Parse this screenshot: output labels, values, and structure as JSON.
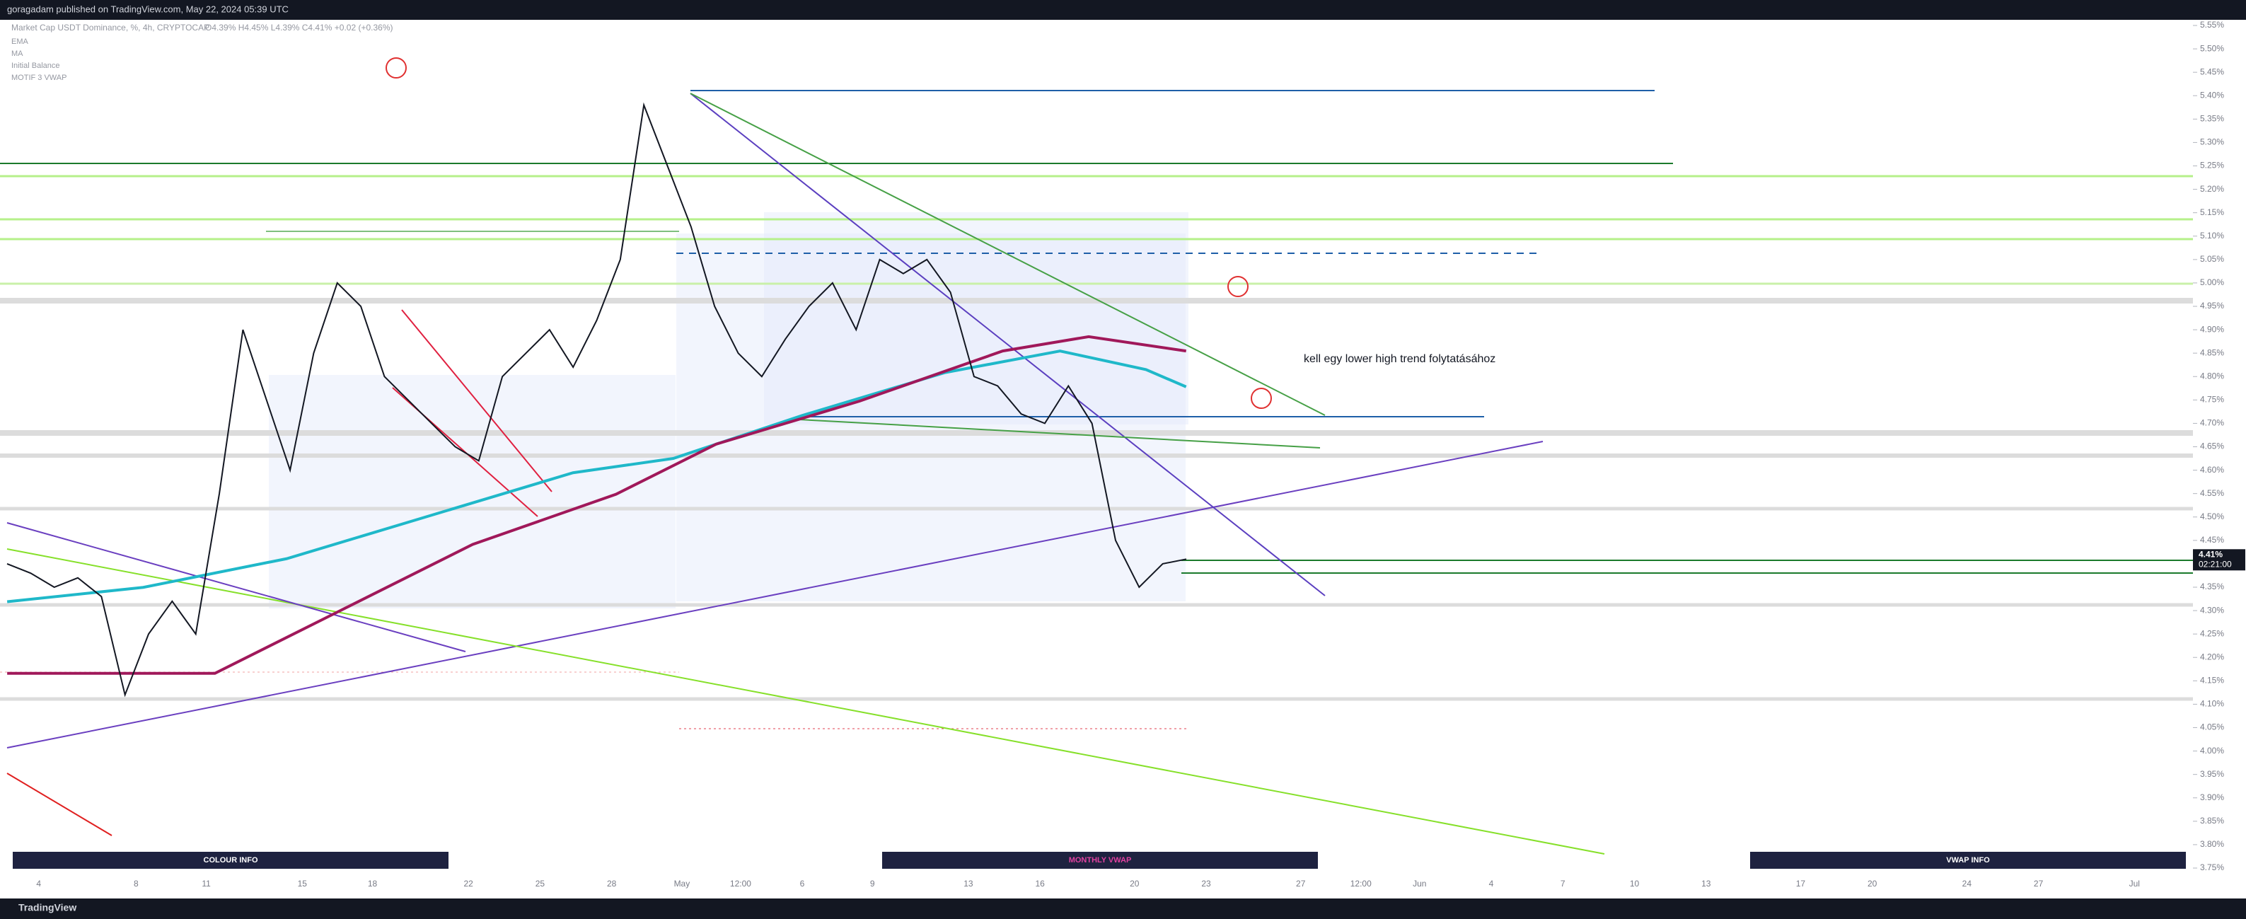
{
  "header": {
    "title": "goragadam published on TradingView.com, May 22, 2024 05:39 UTC"
  },
  "legend": {
    "symbol": "Market Cap USDT Dominance, %, 4h, CRYPTOCAP",
    "ohlc": "O4.39% H4.45% L4.39% C4.41% +0.02 (+0.36%)",
    "indicators": [
      "EMA",
      "MA",
      "Initial Balance",
      "MOTIF 3 VWAP"
    ]
  },
  "annotation": "kell egy lower high trend folytatásához",
  "price_axis": {
    "range": [
      3.75,
      5.55
    ],
    "ticks": [
      {
        "value": 5.55,
        "label": "5.55%"
      },
      {
        "value": 5.5,
        "label": "5.50%"
      },
      {
        "value": 5.45,
        "label": "5.45%"
      },
      {
        "value": 5.4,
        "label": "5.40%"
      },
      {
        "value": 5.35,
        "label": "5.35%"
      },
      {
        "value": 5.3,
        "label": "5.30%"
      },
      {
        "value": 5.25,
        "label": "5.25%"
      },
      {
        "value": 5.2,
        "label": "5.20%"
      },
      {
        "value": 5.15,
        "label": "5.15%"
      },
      {
        "value": 5.1,
        "label": "5.10%"
      },
      {
        "value": 5.05,
        "label": "5.05%"
      },
      {
        "value": 5.0,
        "label": "5.00%"
      },
      {
        "value": 4.95,
        "label": "4.95%"
      },
      {
        "value": 4.9,
        "label": "4.90%"
      },
      {
        "value": 4.85,
        "label": "4.85%"
      },
      {
        "value": 4.8,
        "label": "4.80%"
      },
      {
        "value": 4.75,
        "label": "4.75%"
      },
      {
        "value": 4.7,
        "label": "4.70%"
      },
      {
        "value": 4.65,
        "label": "4.65%"
      },
      {
        "value": 4.6,
        "label": "4.60%"
      },
      {
        "value": 4.55,
        "label": "4.55%"
      },
      {
        "value": 4.5,
        "label": "4.50%"
      },
      {
        "value": 4.45,
        "label": "4.45%"
      },
      {
        "value": 4.35,
        "label": "4.35%"
      },
      {
        "value": 4.3,
        "label": "4.30%"
      },
      {
        "value": 4.25,
        "label": "4.25%"
      },
      {
        "value": 4.2,
        "label": "4.20%"
      },
      {
        "value": 4.15,
        "label": "4.15%"
      },
      {
        "value": 4.1,
        "label": "4.10%"
      },
      {
        "value": 4.05,
        "label": "4.05%"
      },
      {
        "value": 4.0,
        "label": "4.00%"
      },
      {
        "value": 3.95,
        "label": "3.95%"
      },
      {
        "value": 3.9,
        "label": "3.90%"
      },
      {
        "value": 3.85,
        "label": "3.85%"
      },
      {
        "value": 3.8,
        "label": "3.80%"
      },
      {
        "value": 3.75,
        "label": "3.75%"
      }
    ]
  },
  "last_price": {
    "value": 4.41,
    "label": "4.41%",
    "countdown": "02:21:00"
  },
  "price": {
    "closes": [
      4.4,
      4.38,
      4.35,
      4.37,
      4.33,
      4.12,
      4.25,
      4.32,
      4.25,
      4.55,
      4.9,
      4.75,
      4.6,
      4.85,
      5.0,
      4.95,
      4.8,
      4.75,
      4.7,
      4.65,
      4.62,
      4.8,
      4.85,
      4.9,
      4.82,
      4.92,
      5.05,
      5.38,
      5.25,
      5.12,
      4.95,
      4.85,
      4.8,
      4.88,
      4.95,
      5.0,
      4.9,
      5.05,
      5.02,
      5.05,
      4.98,
      4.8,
      4.78,
      4.72,
      4.7,
      4.78,
      4.7,
      4.45,
      4.35,
      4.4,
      4.41
    ]
  },
  "time_axis": {
    "labels": [
      "4",
      "8",
      "11",
      "15",
      "18",
      "22",
      "25",
      "28",
      "May",
      "12:00",
      "6",
      "9",
      "13",
      "16",
      "20",
      "23",
      "27",
      "12:00",
      "Jun",
      "4",
      "7",
      "10",
      "13",
      "17",
      "20",
      "24",
      "27",
      "Jul"
    ]
  },
  "boxes": [
    "COLOUR INFO",
    "MONTHLY VWAP",
    "VWAP INFO"
  ],
  "footer": "TradingView"
}
